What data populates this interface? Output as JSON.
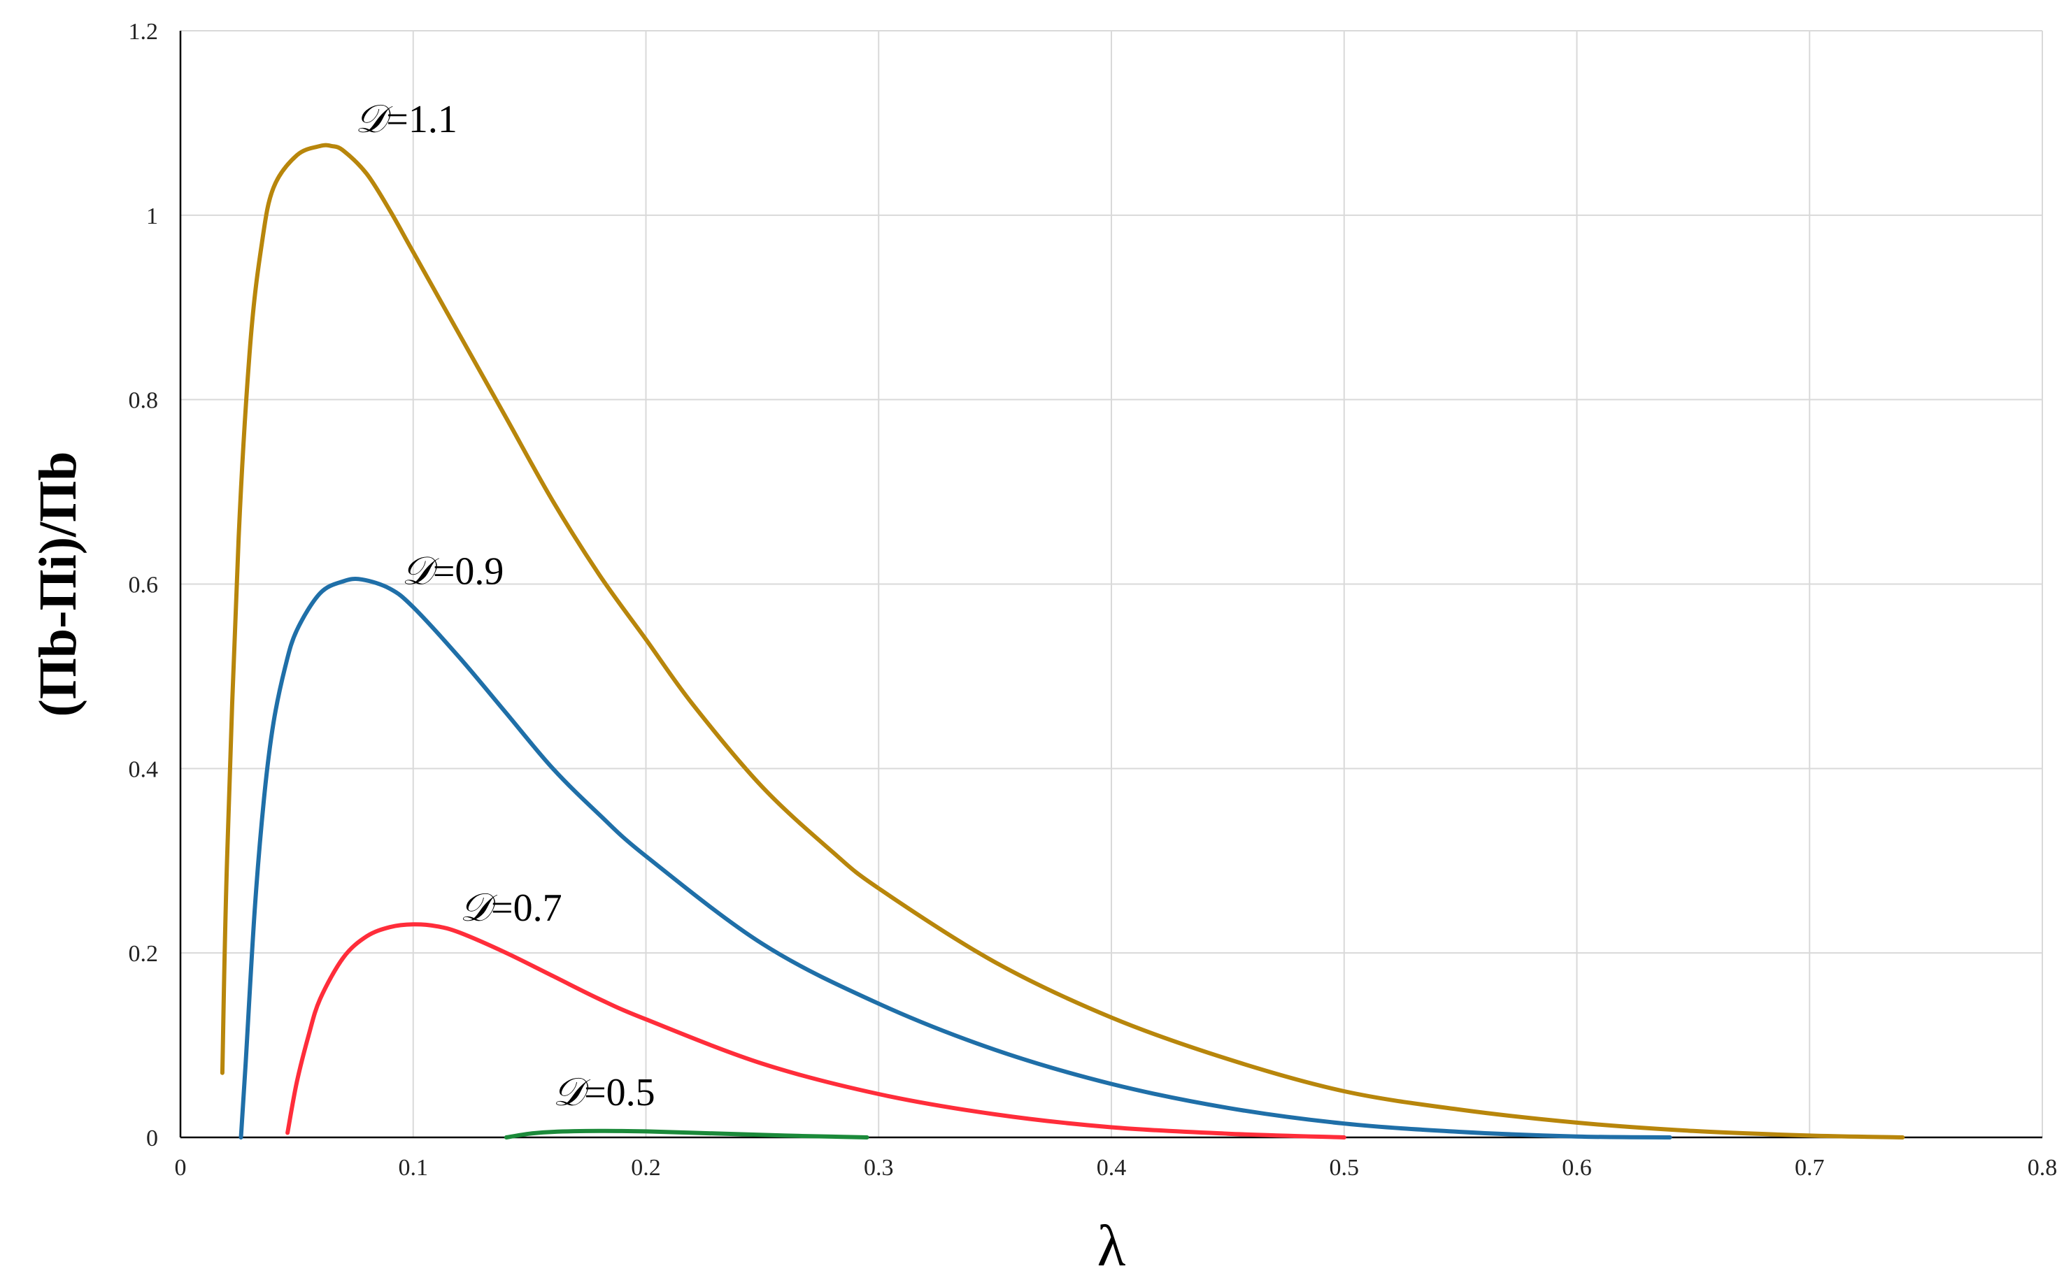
{
  "chart_data": {
    "type": "line",
    "title": "",
    "xlabel": "λ",
    "ylabel": "(Πb-Πi)/Πb",
    "xlim": [
      0,
      0.8
    ],
    "ylim": [
      0,
      1.2
    ],
    "x_ticks": [
      "0",
      "0.1",
      "0.2",
      "0.3",
      "0.4",
      "0.5",
      "0.6",
      "0.7",
      "0.8"
    ],
    "y_ticks": [
      "0",
      "0.2",
      "0.4",
      "0.6",
      "0.8",
      "1",
      "1.2"
    ],
    "grid": true,
    "legend": "none",
    "series": [
      {
        "label_prefix": "𝒟",
        "label_value": "=1.1",
        "color": "#b8860b",
        "x": [
          0.018,
          0.02,
          0.025,
          0.03,
          0.035,
          0.04,
          0.05,
          0.06,
          0.065,
          0.07,
          0.08,
          0.09,
          0.1,
          0.12,
          0.14,
          0.16,
          0.18,
          0.2,
          0.22,
          0.25,
          0.28,
          0.3,
          0.35,
          0.4,
          0.45,
          0.5,
          0.55,
          0.6,
          0.65,
          0.7,
          0.74
        ],
        "y": [
          0.07,
          0.3,
          0.65,
          0.86,
          0.97,
          1.03,
          1.065,
          1.075,
          1.075,
          1.07,
          1.045,
          1.005,
          0.96,
          0.87,
          0.78,
          0.69,
          0.61,
          0.54,
          0.47,
          0.38,
          0.31,
          0.27,
          0.19,
          0.13,
          0.085,
          0.05,
          0.03,
          0.016,
          0.007,
          0.002,
          0.0
        ]
      },
      {
        "label_prefix": "𝒟",
        "label_value": "=0.9",
        "color": "#1f6fa8",
        "x": [
          0.026,
          0.028,
          0.032,
          0.036,
          0.04,
          0.045,
          0.05,
          0.06,
          0.07,
          0.078,
          0.09,
          0.1,
          0.12,
          0.14,
          0.16,
          0.18,
          0.2,
          0.25,
          0.3,
          0.35,
          0.4,
          0.45,
          0.5,
          0.55,
          0.6,
          0.64
        ],
        "y": [
          0.0,
          0.08,
          0.25,
          0.37,
          0.45,
          0.51,
          0.55,
          0.59,
          0.603,
          0.605,
          0.595,
          0.575,
          0.52,
          0.46,
          0.4,
          0.35,
          0.305,
          0.21,
          0.145,
          0.095,
          0.058,
          0.032,
          0.015,
          0.006,
          0.001,
          0.0
        ]
      },
      {
        "label_prefix": "𝒟",
        "label_value": "=0.7",
        "color": "#ff2d3a",
        "x": [
          0.046,
          0.05,
          0.055,
          0.06,
          0.07,
          0.08,
          0.09,
          0.1,
          0.11,
          0.12,
          0.14,
          0.16,
          0.18,
          0.2,
          0.25,
          0.3,
          0.35,
          0.4,
          0.45,
          0.5
        ],
        "y": [
          0.005,
          0.06,
          0.11,
          0.15,
          0.195,
          0.218,
          0.228,
          0.231,
          0.229,
          0.222,
          0.2,
          0.175,
          0.15,
          0.128,
          0.08,
          0.047,
          0.025,
          0.011,
          0.004,
          0.0
        ]
      },
      {
        "label_prefix": "𝒟",
        "label_value": "=0.5",
        "color": "#1b8a3a",
        "x": [
          0.14,
          0.15,
          0.16,
          0.18,
          0.2,
          0.22,
          0.24,
          0.26,
          0.28,
          0.295
        ],
        "y": [
          0.0,
          0.004,
          0.006,
          0.007,
          0.0065,
          0.005,
          0.0035,
          0.002,
          0.0008,
          0.0
        ]
      }
    ]
  }
}
